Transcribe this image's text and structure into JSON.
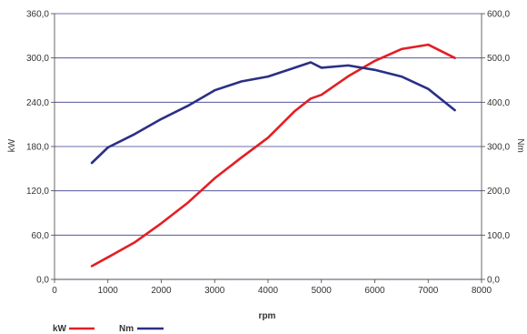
{
  "chart_data": {
    "type": "line",
    "xlabel": "rpm",
    "ylabel_left": "kW",
    "ylabel_right": "Nm",
    "xlim": [
      0,
      8000
    ],
    "ylim_left": [
      0,
      360
    ],
    "ylim_right": [
      0,
      600
    ],
    "x_ticks": [
      "0",
      "1000",
      "2000",
      "3000",
      "4000",
      "5000",
      "6000",
      "7000",
      "8000"
    ],
    "y_left_ticks": [
      "0,0",
      "60,0",
      "120,0",
      "180,0",
      "240,0",
      "300,0",
      "360,0"
    ],
    "y_right_ticks": [
      "0,0",
      "100,0",
      "200,0",
      "300,0",
      "400,0",
      "500,0",
      "600,0"
    ],
    "grid": "horizontal",
    "legend_position": "bottom-left",
    "series": [
      {
        "name": "kW",
        "axis": "left",
        "color": "#e31e24",
        "x": [
          700,
          1000,
          1500,
          2000,
          2500,
          3000,
          3500,
          4000,
          4500,
          4800,
          5000,
          5500,
          6000,
          6500,
          7000,
          7500
        ],
        "y": [
          18,
          30,
          50,
          76,
          104,
          137,
          165,
          192,
          228,
          245,
          250,
          275,
          296,
          312,
          318,
          300
        ]
      },
      {
        "name": "Nm",
        "axis": "right",
        "color": "#2b2f86",
        "x": [
          700,
          1000,
          1500,
          2000,
          2500,
          3000,
          3500,
          4000,
          4500,
          4800,
          5000,
          5500,
          6000,
          6500,
          7000,
          7500
        ],
        "y": [
          263,
          298,
          328,
          362,
          392,
          427,
          447,
          458,
          478,
          490,
          478,
          483,
          473,
          458,
          430,
          382
        ]
      }
    ]
  }
}
